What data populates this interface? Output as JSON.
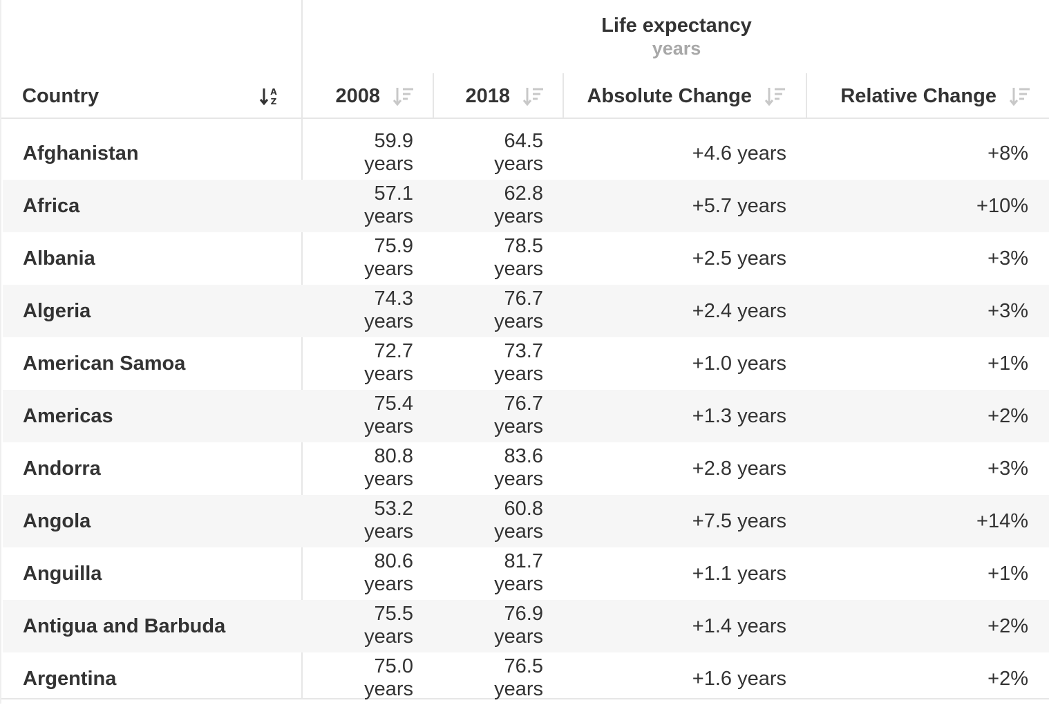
{
  "header": {
    "group_title": "Life expectancy",
    "group_unit": "years",
    "columns": {
      "country": "Country",
      "y2008": "2008",
      "y2018": "2018",
      "absolute": "Absolute Change",
      "relative": "Relative Change"
    }
  },
  "icons": {
    "country_sort": "sort-alpha-icon",
    "numeric_sort": "sort-descending-icon"
  },
  "colors": {
    "row_alt": "#f6f6f6",
    "icon": "#c8c8c8",
    "muted_text": "#a8a8a8"
  },
  "chart_data": {
    "type": "table",
    "title": "Life expectancy",
    "subtitle": "years",
    "columns": [
      "Country",
      "2008",
      "2018",
      "Absolute Change",
      "Relative Change"
    ],
    "sort": {
      "column": "Country",
      "order": "ascending"
    },
    "unit": "years",
    "rows": [
      {
        "country": "Afghanistan",
        "v2008": "59.9",
        "v2018": "64.5",
        "unit2008": "years",
        "unit2018": "years",
        "abs": "+4.6 years",
        "rel": "+8%"
      },
      {
        "country": "Africa",
        "v2008": "57.1",
        "v2018": "62.8",
        "unit2008": "years",
        "unit2018": "years",
        "abs": "+5.7 years",
        "rel": "+10%"
      },
      {
        "country": "Albania",
        "v2008": "75.9",
        "v2018": "78.5",
        "unit2008": "years",
        "unit2018": "years",
        "abs": "+2.5 years",
        "rel": "+3%"
      },
      {
        "country": "Algeria",
        "v2008": "74.3",
        "v2018": "76.7",
        "unit2008": "years",
        "unit2018": "years",
        "abs": "+2.4 years",
        "rel": "+3%"
      },
      {
        "country": "American Samoa",
        "v2008": "72.7",
        "v2018": "73.7",
        "unit2008": "years",
        "unit2018": "years",
        "abs": "+1.0 years",
        "rel": "+1%"
      },
      {
        "country": "Americas",
        "v2008": "75.4",
        "v2018": "76.7",
        "unit2008": "years",
        "unit2018": "years",
        "abs": "+1.3 years",
        "rel": "+2%"
      },
      {
        "country": "Andorra",
        "v2008": "80.8",
        "v2018": "83.6",
        "unit2008": "years",
        "unit2018": "years",
        "abs": "+2.8 years",
        "rel": "+3%"
      },
      {
        "country": "Angola",
        "v2008": "53.2",
        "v2018": "60.8",
        "unit2008": "years",
        "unit2018": "years",
        "abs": "+7.5 years",
        "rel": "+14%"
      },
      {
        "country": "Anguilla",
        "v2008": "80.6",
        "v2018": "81.7",
        "unit2008": "years",
        "unit2018": "years",
        "abs": "+1.1 years",
        "rel": "+1%"
      },
      {
        "country": "Antigua and Barbuda",
        "v2008": "75.5",
        "v2018": "76.9",
        "unit2008": "years",
        "unit2018": "years",
        "abs": "+1.4 years",
        "rel": "+2%"
      },
      {
        "country": "Argentina",
        "v2008": "75.0",
        "v2018": "76.5",
        "unit2008": "years",
        "unit2018": "years",
        "abs": "+1.6 years",
        "rel": "+2%"
      }
    ]
  }
}
